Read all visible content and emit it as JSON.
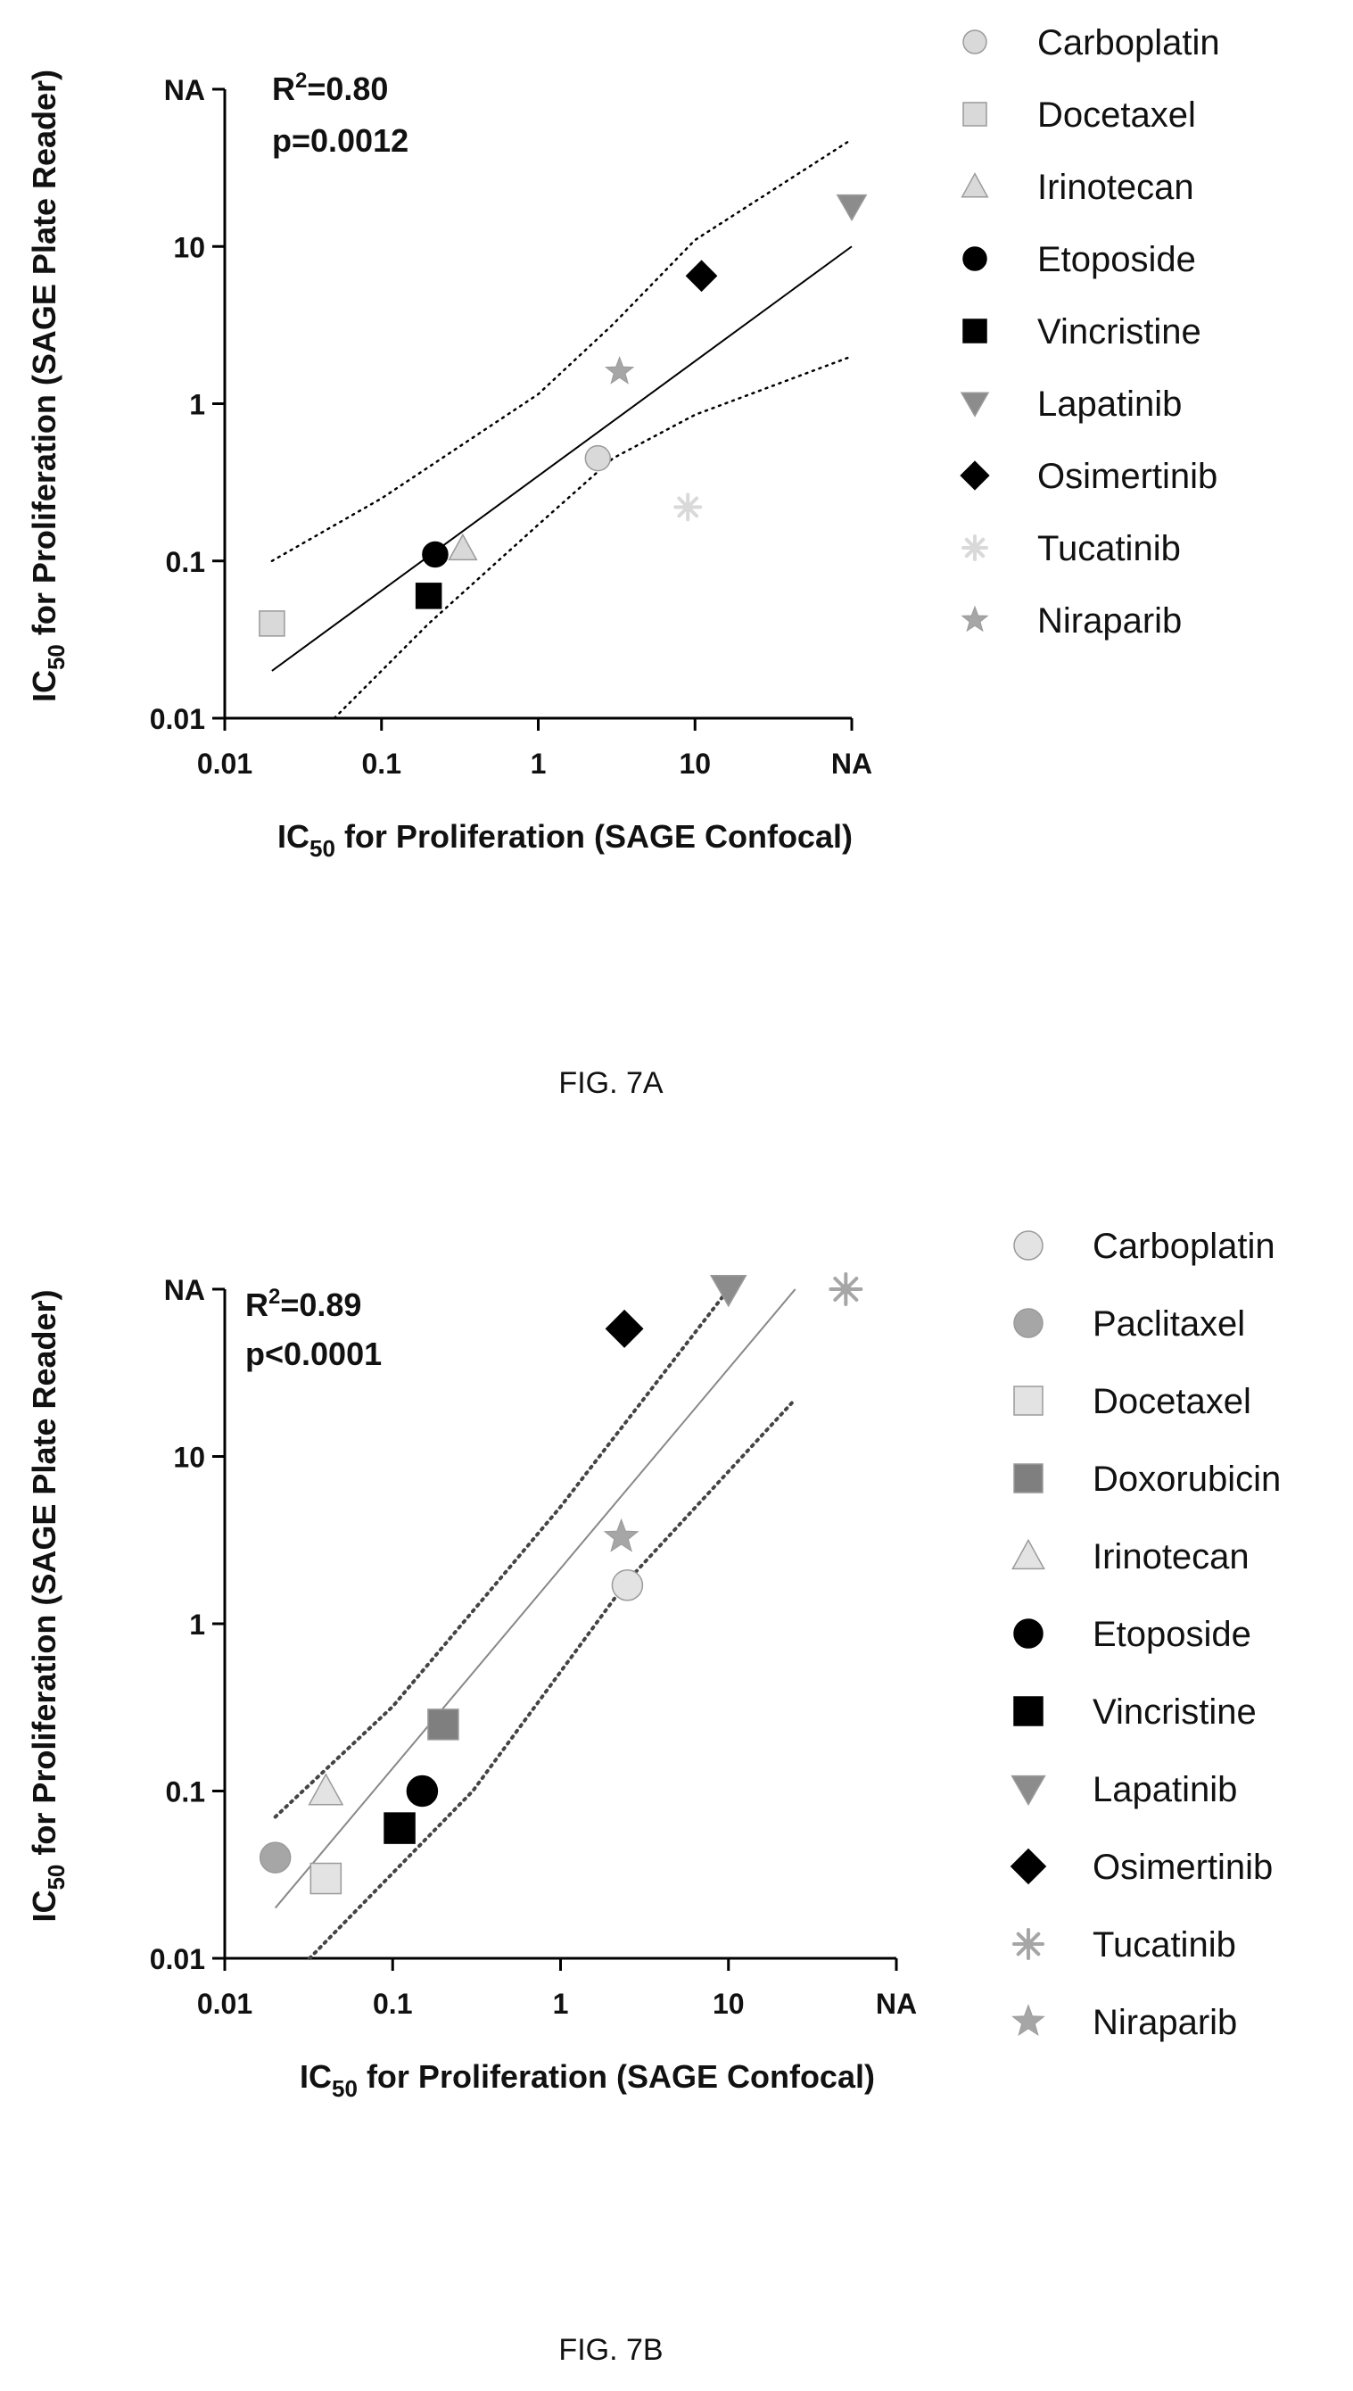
{
  "chart_data": [
    {
      "type": "scatter",
      "caption": "FIG. 7A",
      "xlabel_main": "IC",
      "xlabel_sub": "50",
      "xlabel_rest": " for Proliferation (SAGE Confocal)",
      "ylabel_main": "IC",
      "ylabel_sub": "50",
      "ylabel_rest": " for Proliferation (SAGE Plate Reader)",
      "log_scale": true,
      "xlim": [
        0.01,
        100
      ],
      "ylim": [
        0.01,
        100
      ],
      "x_ticks": [
        {
          "value": 0.01,
          "label": "0.01"
        },
        {
          "value": 0.1,
          "label": "0.1"
        },
        {
          "value": 1,
          "label": "1"
        },
        {
          "value": 10,
          "label": "10"
        },
        {
          "value": 100,
          "label": "NA"
        }
      ],
      "y_ticks": [
        {
          "value": 0.01,
          "label": "0.01"
        },
        {
          "value": 0.1,
          "label": "0.1"
        },
        {
          "value": 1,
          "label": "1"
        },
        {
          "value": 10,
          "label": "10"
        },
        {
          "value": 100,
          "label": "NA"
        }
      ],
      "stat_r2_prefix": "R",
      "stat_r2_sup": "2",
      "stat_r2_value": "=0.80",
      "stat_p": "p=0.0012",
      "fit_line": [
        [
          0.02,
          0.02
        ],
        [
          100,
          10
        ]
      ],
      "ci_upper": [
        [
          0.02,
          0.1
        ],
        [
          0.1,
          0.25
        ],
        [
          1,
          1.15
        ],
        [
          3,
          3.2
        ],
        [
          10,
          11
        ],
        [
          100,
          48
        ]
      ],
      "ci_lower": [
        [
          0.05,
          0.01
        ],
        [
          0.2,
          0.04
        ],
        [
          1,
          0.17
        ],
        [
          3,
          0.45
        ],
        [
          10,
          0.85
        ],
        [
          100,
          2
        ]
      ],
      "series": [
        {
          "name": "Carboplatin",
          "marker": "circle",
          "color": "#d9d9d9",
          "x": [
            2.4
          ],
          "y": [
            0.45
          ]
        },
        {
          "name": "Docetaxel",
          "marker": "square",
          "color": "#d9d9d9",
          "x": [
            0.02
          ],
          "y": [
            0.04
          ]
        },
        {
          "name": "Irinotecan",
          "marker": "triangle-up",
          "color": "#d9d9d9",
          "x": [
            0.33
          ],
          "y": [
            0.12
          ]
        },
        {
          "name": "Etoposide",
          "marker": "circle",
          "color": "#000000",
          "x": [
            0.22
          ],
          "y": [
            0.11
          ]
        },
        {
          "name": "Vincristine",
          "marker": "square",
          "color": "#000000",
          "x": [
            0.2
          ],
          "y": [
            0.06
          ]
        },
        {
          "name": "Lapatinib",
          "marker": "triangle-down",
          "color": "#8c8c8c",
          "x": [
            100
          ],
          "y": [
            18
          ]
        },
        {
          "name": "Osimertinib",
          "marker": "diamond",
          "color": "#000000",
          "x": [
            11
          ],
          "y": [
            6.5
          ]
        },
        {
          "name": "Tucatinib",
          "marker": "asterisk",
          "color": "#d9d9d9",
          "x": [
            9
          ],
          "y": [
            0.22
          ]
        },
        {
          "name": "Niraparib",
          "marker": "star",
          "color": "#a6a6a6",
          "x": [
            3.3
          ],
          "y": [
            1.6
          ]
        }
      ]
    },
    {
      "type": "scatter",
      "caption": "FIG. 7B",
      "xlabel_main": "IC",
      "xlabel_sub": "50",
      "xlabel_rest": " for Proliferation (SAGE Confocal)",
      "ylabel_main": "IC",
      "ylabel_sub": "50",
      "ylabel_rest": " for Proliferation (SAGE Plate Reader)",
      "log_scale": true,
      "xlim": [
        0.01,
        100
      ],
      "ylim": [
        0.01,
        100
      ],
      "x_ticks": [
        {
          "value": 0.01,
          "label": "0.01"
        },
        {
          "value": 0.1,
          "label": "0.1"
        },
        {
          "value": 1,
          "label": "1"
        },
        {
          "value": 10,
          "label": "10"
        },
        {
          "value": 100,
          "label": "NA"
        }
      ],
      "y_ticks": [
        {
          "value": 0.01,
          "label": "0.01"
        },
        {
          "value": 0.1,
          "label": "0.1"
        },
        {
          "value": 1,
          "label": "1"
        },
        {
          "value": 10,
          "label": "10"
        },
        {
          "value": 100,
          "label": "NA"
        }
      ],
      "stat_r2_prefix": "R",
      "stat_r2_sup": "2",
      "stat_r2_value": "=0.89",
      "stat_p": "p<0.0001",
      "fit_line": [
        [
          0.02,
          0.02
        ],
        [
          25,
          100
        ]
      ],
      "ci_upper": [
        [
          0.02,
          0.07
        ],
        [
          0.1,
          0.32
        ],
        [
          1,
          5
        ],
        [
          10,
          100
        ]
      ],
      "ci_lower": [
        [
          0.032,
          0.01
        ],
        [
          0.3,
          0.1
        ],
        [
          2.5,
          1.8
        ],
        [
          25,
          22
        ]
      ],
      "series": [
        {
          "name": "Carboplatin",
          "marker": "circle",
          "color": "#e3e3e3",
          "x": [
            2.5
          ],
          "y": [
            1.7
          ]
        },
        {
          "name": "Paclitaxel",
          "marker": "circle",
          "color": "#a6a6a6",
          "x": [
            0.02
          ],
          "y": [
            0.04
          ]
        },
        {
          "name": "Docetaxel",
          "marker": "square",
          "color": "#e3e3e3",
          "x": [
            0.04
          ],
          "y": [
            0.03
          ]
        },
        {
          "name": "Doxorubicin",
          "marker": "square",
          "color": "#7f7f7f",
          "x": [
            0.2
          ],
          "y": [
            0.25
          ]
        },
        {
          "name": "Irinotecan",
          "marker": "triangle-up",
          "color": "#e3e3e3",
          "x": [
            0.04
          ],
          "y": [
            0.1
          ]
        },
        {
          "name": "Etoposide",
          "marker": "circle",
          "color": "#000000",
          "x": [
            0.15
          ],
          "y": [
            0.1
          ]
        },
        {
          "name": "Vincristine",
          "marker": "square",
          "color": "#000000",
          "x": [
            0.11
          ],
          "y": [
            0.06
          ]
        },
        {
          "name": "Lapatinib",
          "marker": "triangle-down",
          "color": "#8c8c8c",
          "x": [
            10
          ],
          "y": [
            100
          ]
        },
        {
          "name": "Osimertinib",
          "marker": "diamond",
          "color": "#000000",
          "x": [
            2.4
          ],
          "y": [
            58
          ]
        },
        {
          "name": "Tucatinib",
          "marker": "asterisk",
          "color": "#a6a6a6",
          "x": [
            50
          ],
          "y": [
            100
          ]
        },
        {
          "name": "Niraparib",
          "marker": "star",
          "color": "#a6a6a6",
          "x": [
            2.3
          ],
          "y": [
            3.3
          ]
        }
      ]
    }
  ]
}
